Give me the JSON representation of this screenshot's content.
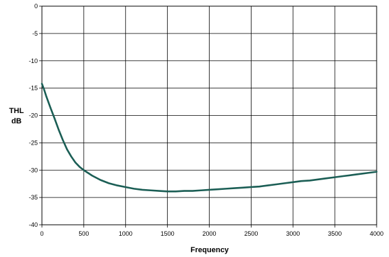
{
  "chart_data": {
    "type": "line",
    "title": "",
    "xlabel": "Frequency",
    "ylabel": [
      "THL",
      "dB"
    ],
    "xlim": [
      0,
      4000
    ],
    "ylim": [
      -40,
      0
    ],
    "xticks": [
      0,
      500,
      1000,
      1500,
      2000,
      2500,
      3000,
      3500,
      4000
    ],
    "yticks": [
      0,
      -5,
      -10,
      -15,
      -20,
      -25,
      -30,
      -35,
      -40
    ],
    "grid": true,
    "series": [
      {
        "color": "#1b5e55",
        "x": [
          0,
          25,
          50,
          100,
          150,
          200,
          250,
          300,
          350,
          400,
          450,
          500,
          600,
          700,
          800,
          900,
          1000,
          1100,
          1200,
          1300,
          1400,
          1500,
          1600,
          1700,
          1800,
          1900,
          2000,
          2100,
          2200,
          2300,
          2400,
          2500,
          2600,
          2700,
          2800,
          2900,
          3000,
          3100,
          3200,
          3300,
          3400,
          3500,
          3600,
          3700,
          3800,
          3900,
          4000
        ],
        "y": [
          -14.2,
          -15.2,
          -16.4,
          -18.5,
          -20.5,
          -22.6,
          -24.5,
          -26.2,
          -27.5,
          -28.6,
          -29.4,
          -30.0,
          -31.0,
          -31.8,
          -32.4,
          -32.8,
          -33.1,
          -33.4,
          -33.6,
          -33.7,
          -33.8,
          -33.9,
          -33.9,
          -33.8,
          -33.8,
          -33.7,
          -33.6,
          -33.5,
          -33.4,
          -33.3,
          -33.2,
          -33.1,
          -33.0,
          -32.8,
          -32.6,
          -32.4,
          -32.2,
          -32.0,
          -31.9,
          -31.7,
          -31.5,
          -31.3,
          -31.1,
          -30.9,
          -30.7,
          -30.5,
          -30.3
        ]
      }
    ]
  }
}
